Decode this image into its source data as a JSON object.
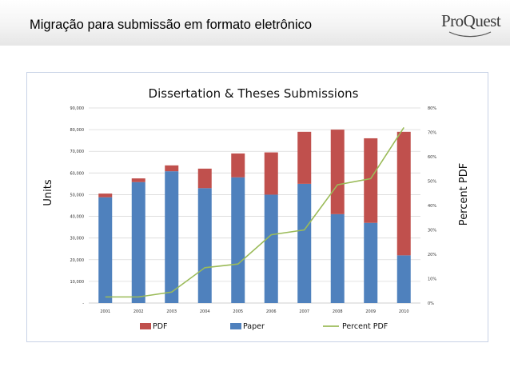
{
  "slide": {
    "title": "Migração para submissão em formato eletrônico",
    "logo_text": "ProQuest"
  },
  "colors": {
    "pdf": "#c0504d",
    "paper": "#4f81bd",
    "percent_pdf": "#9bbb59"
  },
  "chart_data": {
    "type": "bar",
    "stacked": true,
    "title": "Dissertation & Theses Submissions",
    "ylabel": "Units",
    "y2label": "Percent PDF",
    "ylim": [
      0,
      90000
    ],
    "y2lim": [
      0,
      0.8
    ],
    "yticks": [
      "-",
      "10,000",
      "20,000",
      "30,000",
      "40,000",
      "50,000",
      "60,000",
      "70,000",
      "80,000",
      "90,000"
    ],
    "y2ticks": [
      "0%",
      "10%",
      "20%",
      "30%",
      "40%",
      "50%",
      "60%",
      "70%",
      "80%"
    ],
    "categories": [
      "2001",
      "2002",
      "2003",
      "2004",
      "2005",
      "2006",
      "2007",
      "2008",
      "2009",
      "2010"
    ],
    "series": [
      {
        "name": "Paper",
        "values": [
          48800,
          55800,
          60800,
          53000,
          58000,
          50000,
          55000,
          41000,
          37000,
          22000
        ]
      },
      {
        "name": "PDF",
        "values": [
          1700,
          1700,
          2700,
          9000,
          11000,
          19500,
          24000,
          39000,
          39000,
          57000
        ]
      },
      {
        "name": "Percent PDF",
        "axis": "secondary",
        "values": [
          0.025,
          0.025,
          0.045,
          0.145,
          0.16,
          0.28,
          0.3,
          0.485,
          0.51,
          0.72
        ]
      }
    ],
    "legend": [
      "PDF",
      "Paper",
      "Percent PDF"
    ],
    "legend_position": "bottom",
    "grid": true
  }
}
